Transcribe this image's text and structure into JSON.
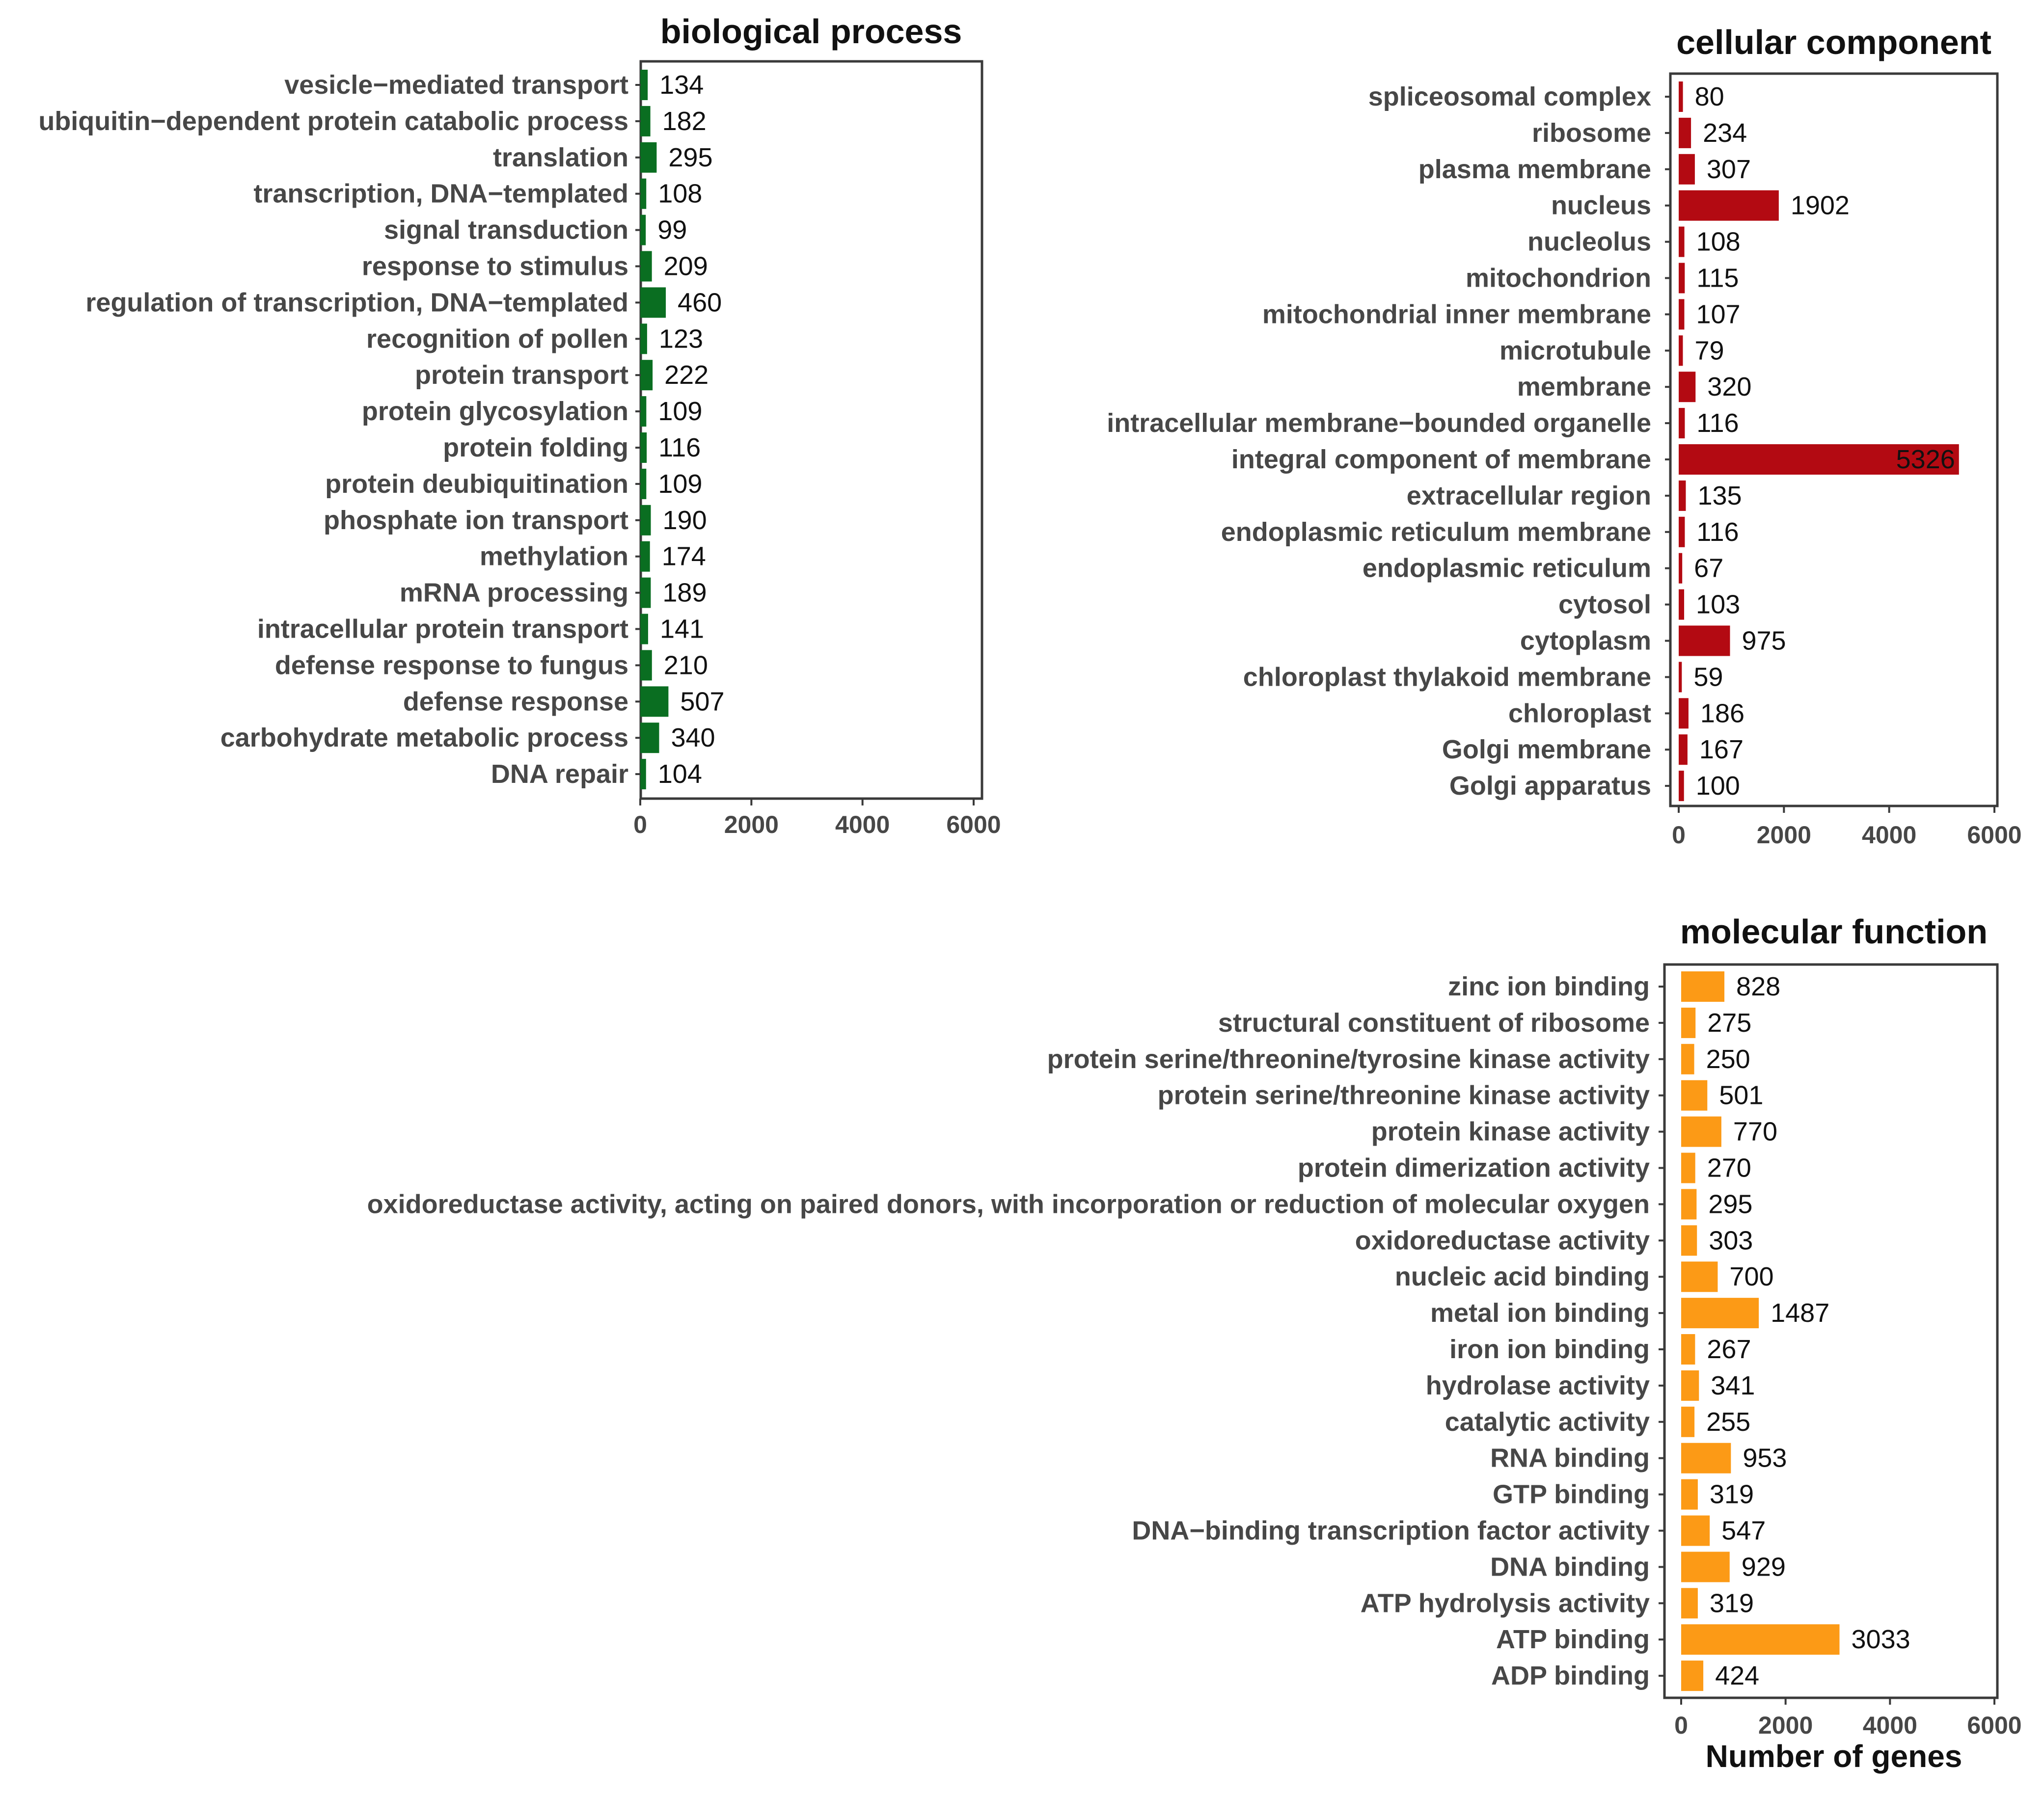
{
  "chart_data": [
    {
      "type": "bar",
      "orientation": "horizontal",
      "title": "biological process",
      "xlabel": "",
      "ylabel": "",
      "xlim": [
        0,
        6000
      ],
      "xticks": [
        0,
        2000,
        4000,
        6000
      ],
      "color": "#0a6e21",
      "categories": [
        "vesicle−mediated transport",
        "ubiquitin−dependent  protein catabolic process",
        "translation",
        "transcription, DNA−templated",
        "signal transduction",
        "response to stimulus",
        "regulation of transcription, DNA−templated",
        "recognition  of pollen",
        "protein transport",
        "protein glycosylation",
        "protein folding",
        "protein deubiquitination",
        "phosphate ion transport",
        "methylation",
        "mRNA  processing",
        "intracellular protein transport",
        "defense response to fungus",
        "defense response",
        "carbohydrate metabolic process",
        "DNA  repair"
      ],
      "values": [
        134,
        182,
        295,
        108,
        99,
        209,
        460,
        123,
        222,
        109,
        116,
        109,
        190,
        174,
        189,
        141,
        210,
        507,
        340,
        104
      ]
    },
    {
      "type": "bar",
      "orientation": "horizontal",
      "title": "cellular  component",
      "xlabel": "",
      "ylabel": "",
      "xlim": [
        0,
        6000
      ],
      "xticks": [
        0,
        2000,
        4000,
        6000
      ],
      "color": "#b30a12",
      "categories": [
        "spliceosomal complex",
        "ribosome",
        "plasma membrane",
        "nucleus",
        "nucleolus",
        "mitochondrion",
        "mitochondrial inner membrane",
        "microtubule",
        "membrane",
        "intracellular membrane−bounded organelle",
        "integral component of membrane",
        "extracellular region",
        "endoplasmic reticulum membrane",
        "endoplasmic reticulum",
        "cytosol",
        "cytoplasm",
        "chloroplast thylakoid membrane",
        "chloroplast",
        "Golgi  membrane",
        "Golgi  apparatus"
      ],
      "values": [
        80,
        234,
        307,
        1902,
        108,
        115,
        107,
        79,
        320,
        116,
        5326,
        135,
        116,
        67,
        103,
        975,
        59,
        186,
        167,
        100
      ]
    },
    {
      "type": "bar",
      "orientation": "horizontal",
      "title": "molecular  function",
      "xlabel": "Number of genes",
      "ylabel": "",
      "xlim": [
        0,
        6000
      ],
      "xticks": [
        0,
        2000,
        4000,
        6000
      ],
      "color": "#fc9a16",
      "categories": [
        "zinc ion binding",
        "structural constituent of ribosome",
        "protein serine/threonine/tyrosine kinase activity",
        "protein serine/threonine kinase activity",
        "protein kinase activity",
        "protein dimerization activity",
        "oxidoreductase activity, acting on paired donors, with incorporation  or reduction of molecular oxygen",
        "oxidoreductase activity",
        "nucleic acid binding",
        "metal ion binding",
        "iron ion binding",
        "hydrolase activity",
        "catalytic activity",
        "RNA  binding",
        "GTP  binding",
        "DNA−binding   transcription factor activity",
        "DNA  binding",
        "ATP hydrolysis  activity",
        "ATP  binding",
        "ADP  binding"
      ],
      "values": [
        828,
        275,
        250,
        501,
        770,
        270,
        295,
        303,
        700,
        1487,
        267,
        341,
        255,
        953,
        319,
        547,
        929,
        319,
        3033,
        424
      ]
    }
  ]
}
